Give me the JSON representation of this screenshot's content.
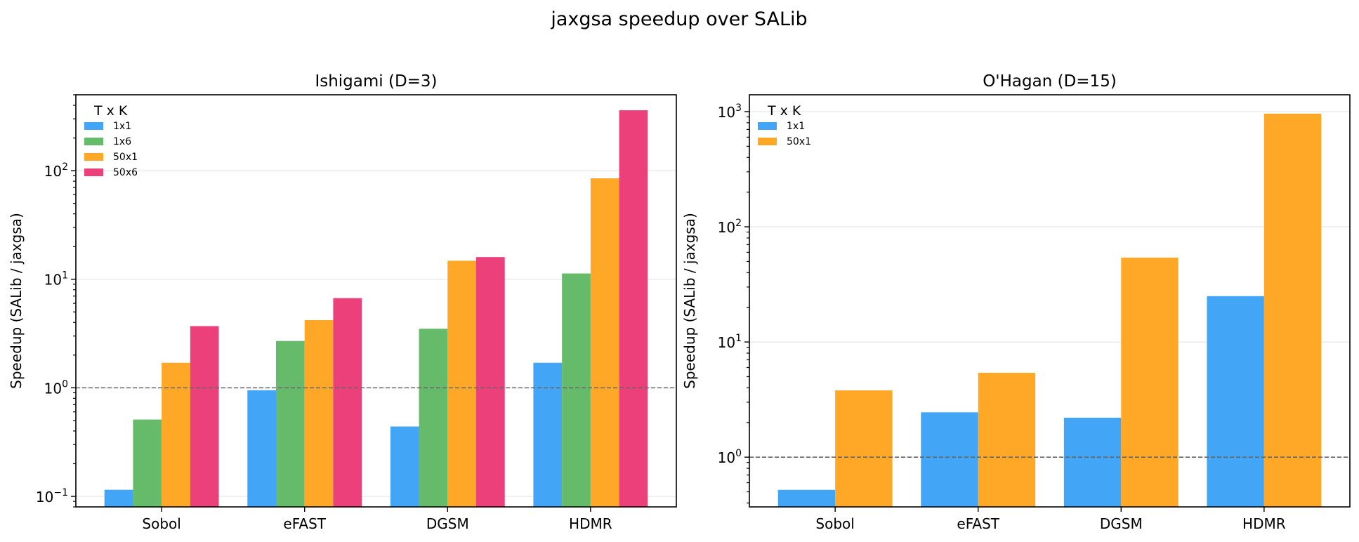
{
  "suptitle": "jaxgsa speedup over SALib",
  "colors": {
    "1x1": "#42A5F5",
    "1x6": "#66BB6A",
    "50x1": "#FFA726",
    "50x6": "#EC407A",
    "reference_line": "#666666",
    "grid": "#e6e6e6"
  },
  "chart_data": [
    {
      "type": "bar",
      "title": "Ishigami (D=3)",
      "ylabel": "Speedup (SALib / jaxgsa)",
      "xlabel": "",
      "yscale": "log",
      "ylim": [
        0.08,
        500
      ],
      "yticks": [
        0.1,
        1,
        10,
        100
      ],
      "ytick_labels": [
        {
          "base": "10",
          "exp": "−1"
        },
        {
          "base": "10",
          "exp": "0"
        },
        {
          "base": "10",
          "exp": "1"
        },
        {
          "base": "10",
          "exp": "2"
        }
      ],
      "reference_line": 1,
      "grid": "y-major",
      "legend": {
        "title": "T x K",
        "position": "upper-left"
      },
      "categories": [
        "Sobol",
        "eFAST",
        "DGSM",
        "HDMR"
      ],
      "series": [
        {
          "name": "1x1",
          "values": [
            0.115,
            0.95,
            0.44,
            1.7
          ]
        },
        {
          "name": "1x6",
          "values": [
            0.51,
            2.7,
            3.5,
            11.3
          ]
        },
        {
          "name": "50x1",
          "values": [
            1.7,
            4.2,
            14.8,
            85
          ]
        },
        {
          "name": "50x6",
          "values": [
            3.7,
            6.7,
            16,
            360
          ]
        }
      ]
    },
    {
      "type": "bar",
      "title": "O'Hagan (D=15)",
      "ylabel": "Speedup (SALib / jaxgsa)",
      "xlabel": "",
      "yscale": "log",
      "ylim": [
        0.37,
        1400
      ],
      "yticks": [
        1,
        10,
        100,
        1000
      ],
      "ytick_labels": [
        {
          "base": "10",
          "exp": "0"
        },
        {
          "base": "10",
          "exp": "1"
        },
        {
          "base": "10",
          "exp": "2"
        },
        {
          "base": "10",
          "exp": "3"
        }
      ],
      "reference_line": 1,
      "grid": "y-major",
      "legend": {
        "title": "T x K",
        "position": "upper-left"
      },
      "categories": [
        "Sobol",
        "eFAST",
        "DGSM",
        "HDMR"
      ],
      "series": [
        {
          "name": "1x1",
          "values": [
            0.52,
            2.45,
            2.2,
            25
          ]
        },
        {
          "name": "50x1",
          "values": [
            3.8,
            5.4,
            54,
            960
          ]
        }
      ]
    }
  ]
}
